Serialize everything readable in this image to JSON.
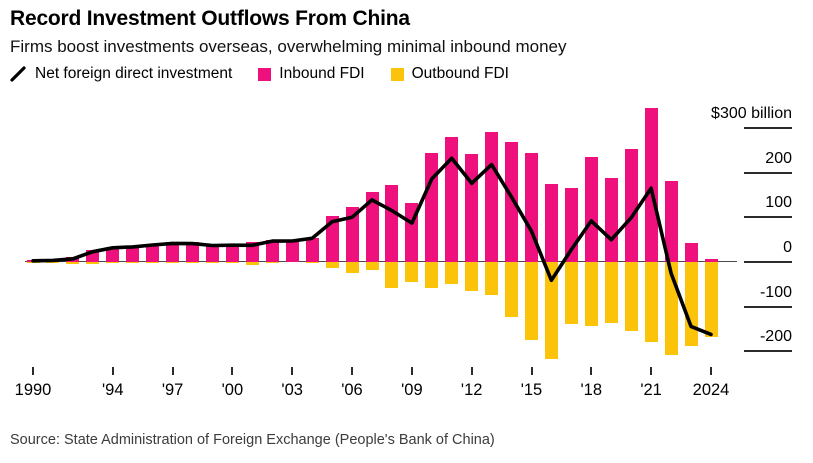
{
  "header": {
    "title": "Record Investment Outflows From China",
    "subtitle": "Firms boost investments overseas, overwhelming minimal inbound money"
  },
  "legend": {
    "items": [
      {
        "label": "Net foreign direct investment",
        "marker": "line-slash",
        "color": "#000000"
      },
      {
        "label": "Inbound FDI",
        "marker": "square",
        "color": "#ee107c"
      },
      {
        "label": "Outbound FDI",
        "marker": "square",
        "color": "#fcc30b"
      }
    ]
  },
  "chart_data": {
    "type": "bar+line combo",
    "title": "Record Investment Outflows From China",
    "x": [
      1990,
      1991,
      1992,
      1993,
      1994,
      1995,
      1996,
      1997,
      1998,
      1999,
      2000,
      2001,
      2002,
      2003,
      2004,
      2005,
      2006,
      2007,
      2008,
      2009,
      2010,
      2011,
      2012,
      2013,
      2014,
      2015,
      2016,
      2017,
      2018,
      2019,
      2020,
      2021,
      2022,
      2023,
      2024
    ],
    "series": [
      {
        "name": "Inbound FDI",
        "type": "bar",
        "color": "#ee107c",
        "values": [
          3.5,
          4.4,
          11.2,
          27.5,
          33.8,
          35.8,
          40.2,
          44.2,
          43.8,
          38.8,
          38.4,
          44.2,
          49.3,
          47.1,
          54.9,
          104,
          124,
          156,
          172,
          131,
          244,
          280,
          241,
          291,
          268,
          243,
          175,
          166,
          235,
          187,
          253,
          344,
          182,
          43,
          6
        ]
      },
      {
        "name": "Outbound FDI",
        "type": "bar",
        "color": "#fcc30b",
        "values": [
          -0.8,
          -0.9,
          -4,
          -4.4,
          -2,
          -2,
          -2.1,
          -2.6,
          -2.6,
          -1.8,
          -0.9,
          -6.9,
          -2.5,
          -0.2,
          -1.8,
          -14,
          -24,
          -17,
          -57,
          -44,
          -58,
          -48,
          -65,
          -73,
          -123,
          -174,
          -216,
          -138,
          -143,
          -137,
          -154,
          -179,
          -207,
          -187,
          -168
        ]
      },
      {
        "name": "Net foreign direct investment",
        "type": "line",
        "color": "#000000",
        "values": [
          2.7,
          3.5,
          7.2,
          23.1,
          31.8,
          33.8,
          38.1,
          41.6,
          41.2,
          37,
          37.5,
          37.3,
          46.8,
          46.9,
          53.1,
          90,
          100,
          139,
          115,
          87,
          186,
          232,
          176,
          218,
          145,
          69,
          -41,
          28,
          92,
          50,
          99,
          165,
          -25,
          -144,
          -162
        ]
      }
    ],
    "y_axis": {
      "side": "right",
      "unit_label": "$300 billion",
      "ticks": [
        300,
        200,
        100,
        0,
        -100,
        -200
      ],
      "tick_labels": [
        "$300 billion",
        "200",
        "100",
        "0",
        "-100",
        "-200"
      ],
      "ylim": [
        -260,
        345
      ],
      "grid": "zero line only"
    },
    "x_axis": {
      "tick_years": [
        1990,
        1994,
        1997,
        2000,
        2003,
        2006,
        2009,
        2012,
        2015,
        2018,
        2021,
        2024
      ],
      "tick_labels": [
        "1990",
        "'94",
        "'97",
        "'00",
        "'03",
        "'06",
        "'09",
        "'12",
        "'15",
        "'18",
        "'21",
        "2024"
      ]
    },
    "values_unit": "USD billions"
  },
  "source": {
    "text": "Source: State Administration of Foreign Exchange (People's Bank of China)"
  }
}
